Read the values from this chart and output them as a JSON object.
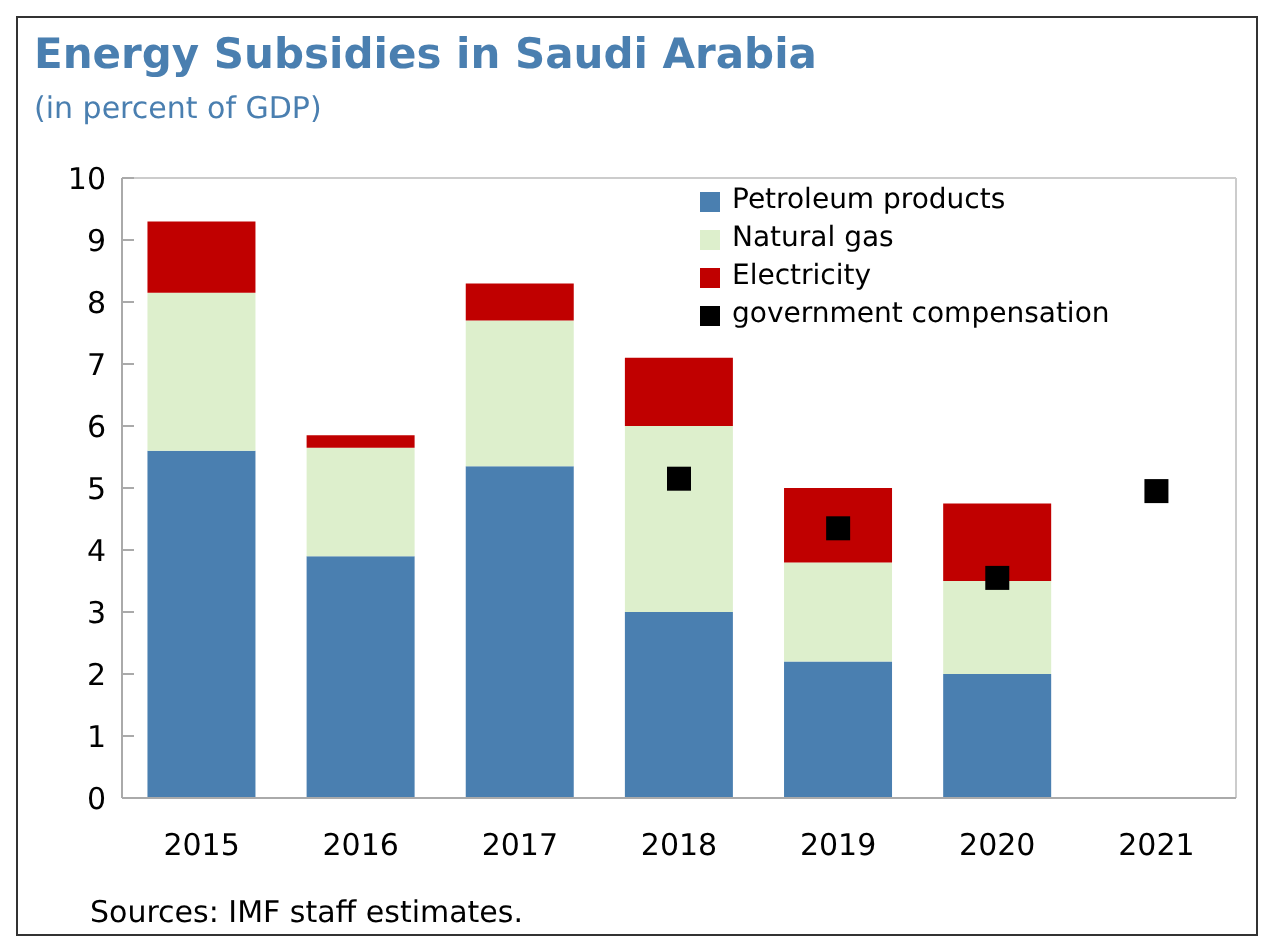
{
  "chart_data": {
    "type": "bar",
    "title": "Energy Subsidies in Saudi Arabia",
    "subtitle": "(in percent of GDP)",
    "categories": [
      "2015",
      "2016",
      "2017",
      "2018",
      "2019",
      "2020",
      "2021"
    ],
    "stacked": true,
    "ylim": [
      0,
      10
    ],
    "yticks": [
      0,
      1,
      2,
      3,
      4,
      5,
      6,
      7,
      8,
      9,
      10
    ],
    "grid": false,
    "legend": "top right",
    "annotations": [
      "Sources: IMF staff estimates."
    ],
    "series": [
      {
        "name": "Petroleum products",
        "color": "#4a7fb0",
        "values": [
          5.6,
          3.9,
          5.35,
          3.0,
          2.2,
          2.0,
          null
        ]
      },
      {
        "name": "Natural gas",
        "color": "#ddefcc",
        "values": [
          2.55,
          1.75,
          2.35,
          3.0,
          1.6,
          1.5,
          null
        ]
      },
      {
        "name": "Electricity",
        "color": "#c00000",
        "values": [
          1.15,
          0.2,
          0.6,
          1.1,
          1.2,
          1.25,
          null
        ]
      },
      {
        "name": "government compensation",
        "type": "scatter",
        "marker": "square",
        "color": "#000000",
        "values": [
          null,
          null,
          null,
          5.15,
          4.35,
          3.55,
          4.95
        ]
      }
    ]
  }
}
